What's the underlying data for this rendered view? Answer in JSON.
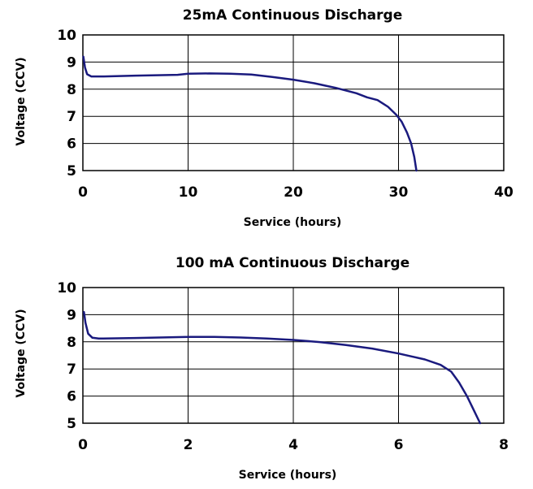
{
  "chart_data": [
    {
      "type": "line",
      "title": "25mA Continuous Discharge",
      "xlabel": "Service (hours)",
      "ylabel": "Voltage (CCV)",
      "xlim": [
        0,
        40
      ],
      "ylim": [
        5,
        10
      ],
      "xticks": [
        0,
        10,
        20,
        30,
        40
      ],
      "yticks": [
        5,
        6,
        7,
        8,
        9,
        10
      ],
      "xtick_labels": [
        "0",
        "10",
        "20",
        "30",
        "40"
      ],
      "ytick_labels": [
        "5",
        "6",
        "7",
        "8",
        "9",
        "10"
      ],
      "grid": true,
      "series": [
        {
          "color": "#1a1a7e",
          "x": [
            0.05,
            0.2,
            0.4,
            0.8,
            2,
            5,
            9,
            10,
            12,
            14,
            16,
            18,
            20,
            22,
            24,
            26,
            27,
            28,
            29,
            29.8,
            30.3,
            30.8,
            31.2,
            31.5,
            31.7
          ],
          "y": [
            9.2,
            8.8,
            8.55,
            8.47,
            8.47,
            8.5,
            8.53,
            8.57,
            8.58,
            8.57,
            8.54,
            8.45,
            8.35,
            8.22,
            8.05,
            7.85,
            7.7,
            7.6,
            7.35,
            7.05,
            6.8,
            6.4,
            6.0,
            5.5,
            5.0
          ]
        }
      ]
    },
    {
      "type": "line",
      "title": "100 mA Continuous Discharge",
      "xlabel": "Service (hours)",
      "ylabel": "Voltage (CCV)",
      "xlim": [
        0,
        8
      ],
      "ylim": [
        5,
        10
      ],
      "xticks": [
        0,
        2,
        4,
        6,
        8
      ],
      "yticks": [
        5,
        6,
        7,
        8,
        9,
        10
      ],
      "xtick_labels": [
        "0",
        "2",
        "4",
        "6",
        "8"
      ],
      "ytick_labels": [
        "5",
        "6",
        "7",
        "8",
        "9",
        "10"
      ],
      "grid": true,
      "series": [
        {
          "color": "#1a1a7e",
          "x": [
            0.02,
            0.05,
            0.1,
            0.18,
            0.3,
            1,
            2,
            2.5,
            3,
            3.5,
            4,
            4.5,
            5,
            5.5,
            6,
            6.5,
            6.8,
            7.0,
            7.15,
            7.3,
            7.45,
            7.55
          ],
          "y": [
            9.1,
            8.7,
            8.3,
            8.15,
            8.12,
            8.14,
            8.18,
            8.18,
            8.16,
            8.12,
            8.07,
            7.99,
            7.88,
            7.75,
            7.57,
            7.35,
            7.15,
            6.9,
            6.5,
            6.0,
            5.4,
            5.0
          ]
        }
      ]
    }
  ]
}
